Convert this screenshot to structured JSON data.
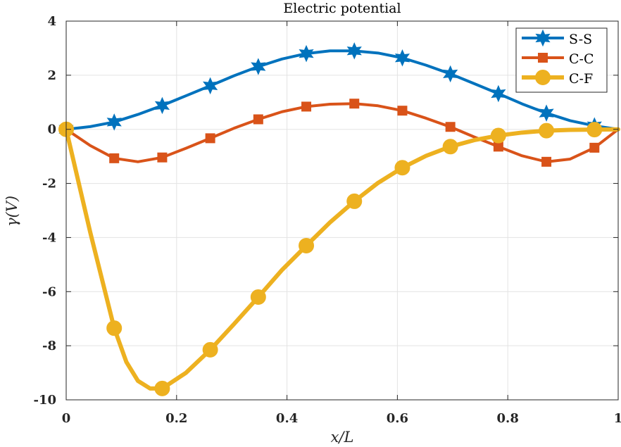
{
  "chart_data": {
    "type": "line",
    "title": "Electric potential",
    "xlabel": "x/L",
    "ylabel": "γ(V)",
    "xlim": [
      0,
      1
    ],
    "ylim": [
      -10,
      4
    ],
    "xticks": [
      0,
      0.2,
      0.4,
      0.6,
      0.8,
      1
    ],
    "xtick_labels": [
      "0",
      "0.2",
      "0.4",
      "0.6",
      "0.8",
      "1"
    ],
    "yticks": [
      -10,
      -8,
      -6,
      -4,
      -2,
      0,
      2,
      4
    ],
    "ytick_labels": [
      "-10",
      "-8",
      "-6",
      "-4",
      "-2",
      "0",
      "2",
      "4"
    ],
    "grid": true,
    "legend_position": "top-right",
    "series": [
      {
        "name": "S-S",
        "color": "#0072BD",
        "marker": "hexagram",
        "x": [
          0,
          0.0435,
          0.087,
          0.13,
          0.174,
          0.217,
          0.261,
          0.304,
          0.348,
          0.391,
          0.435,
          0.478,
          0.522,
          0.565,
          0.609,
          0.652,
          0.696,
          0.739,
          0.783,
          0.826,
          0.87,
          0.913,
          0.957,
          1
        ],
        "y": [
          0,
          0.1,
          0.27,
          0.55,
          0.88,
          1.24,
          1.61,
          1.98,
          2.32,
          2.6,
          2.8,
          2.9,
          2.9,
          2.82,
          2.64,
          2.37,
          2.05,
          1.69,
          1.32,
          0.94,
          0.6,
          0.32,
          0.13,
          0
        ],
        "marker_x": [
          0,
          0.087,
          0.174,
          0.261,
          0.348,
          0.435,
          0.522,
          0.609,
          0.696,
          0.783,
          0.87,
          0.957
        ],
        "marker_y": [
          0,
          0.27,
          0.88,
          1.61,
          2.32,
          2.8,
          2.9,
          2.64,
          2.05,
          1.32,
          0.6,
          0.13
        ]
      },
      {
        "name": "C-C",
        "color": "#D95319",
        "marker": "square",
        "x": [
          0,
          0.0435,
          0.087,
          0.13,
          0.174,
          0.217,
          0.261,
          0.304,
          0.348,
          0.391,
          0.435,
          0.478,
          0.522,
          0.565,
          0.609,
          0.652,
          0.696,
          0.739,
          0.783,
          0.826,
          0.87,
          0.913,
          0.957,
          1
        ],
        "y": [
          0,
          -0.6,
          -1.07,
          -1.2,
          -1.04,
          -0.7,
          -0.33,
          0.04,
          0.37,
          0.65,
          0.84,
          0.93,
          0.95,
          0.87,
          0.69,
          0.41,
          0.09,
          -0.28,
          -0.64,
          -0.98,
          -1.2,
          -1.1,
          -0.68,
          0
        ],
        "marker_x": [
          0,
          0.087,
          0.174,
          0.261,
          0.348,
          0.435,
          0.522,
          0.609,
          0.696,
          0.783,
          0.87,
          0.957
        ],
        "marker_y": [
          0,
          -1.07,
          -1.04,
          -0.33,
          0.37,
          0.84,
          0.95,
          0.69,
          0.09,
          -0.64,
          -1.2,
          -0.68
        ]
      },
      {
        "name": "C-F",
        "color": "#EDB120",
        "marker": "circle",
        "x": [
          0,
          0.0435,
          0.087,
          0.109,
          0.13,
          0.152,
          0.174,
          0.217,
          0.261,
          0.304,
          0.348,
          0.391,
          0.435,
          0.478,
          0.522,
          0.565,
          0.609,
          0.652,
          0.696,
          0.739,
          0.783,
          0.826,
          0.87,
          0.913,
          0.957,
          1
        ],
        "y": [
          0,
          -3.8,
          -7.35,
          -8.6,
          -9.3,
          -9.58,
          -9.58,
          -9.0,
          -8.15,
          -7.2,
          -6.2,
          -5.2,
          -4.3,
          -3.44,
          -2.66,
          -1.98,
          -1.42,
          -0.98,
          -0.64,
          -0.4,
          -0.23,
          -0.12,
          -0.05,
          -0.02,
          -0.01,
          0
        ],
        "marker_x": [
          0,
          0.087,
          0.174,
          0.261,
          0.348,
          0.435,
          0.522,
          0.609,
          0.696,
          0.783,
          0.87,
          0.957
        ],
        "marker_y": [
          0,
          -7.35,
          -9.58,
          -8.15,
          -6.2,
          -4.3,
          -2.66,
          -1.42,
          -0.64,
          -0.23,
          -0.05,
          -0.01
        ]
      }
    ]
  }
}
